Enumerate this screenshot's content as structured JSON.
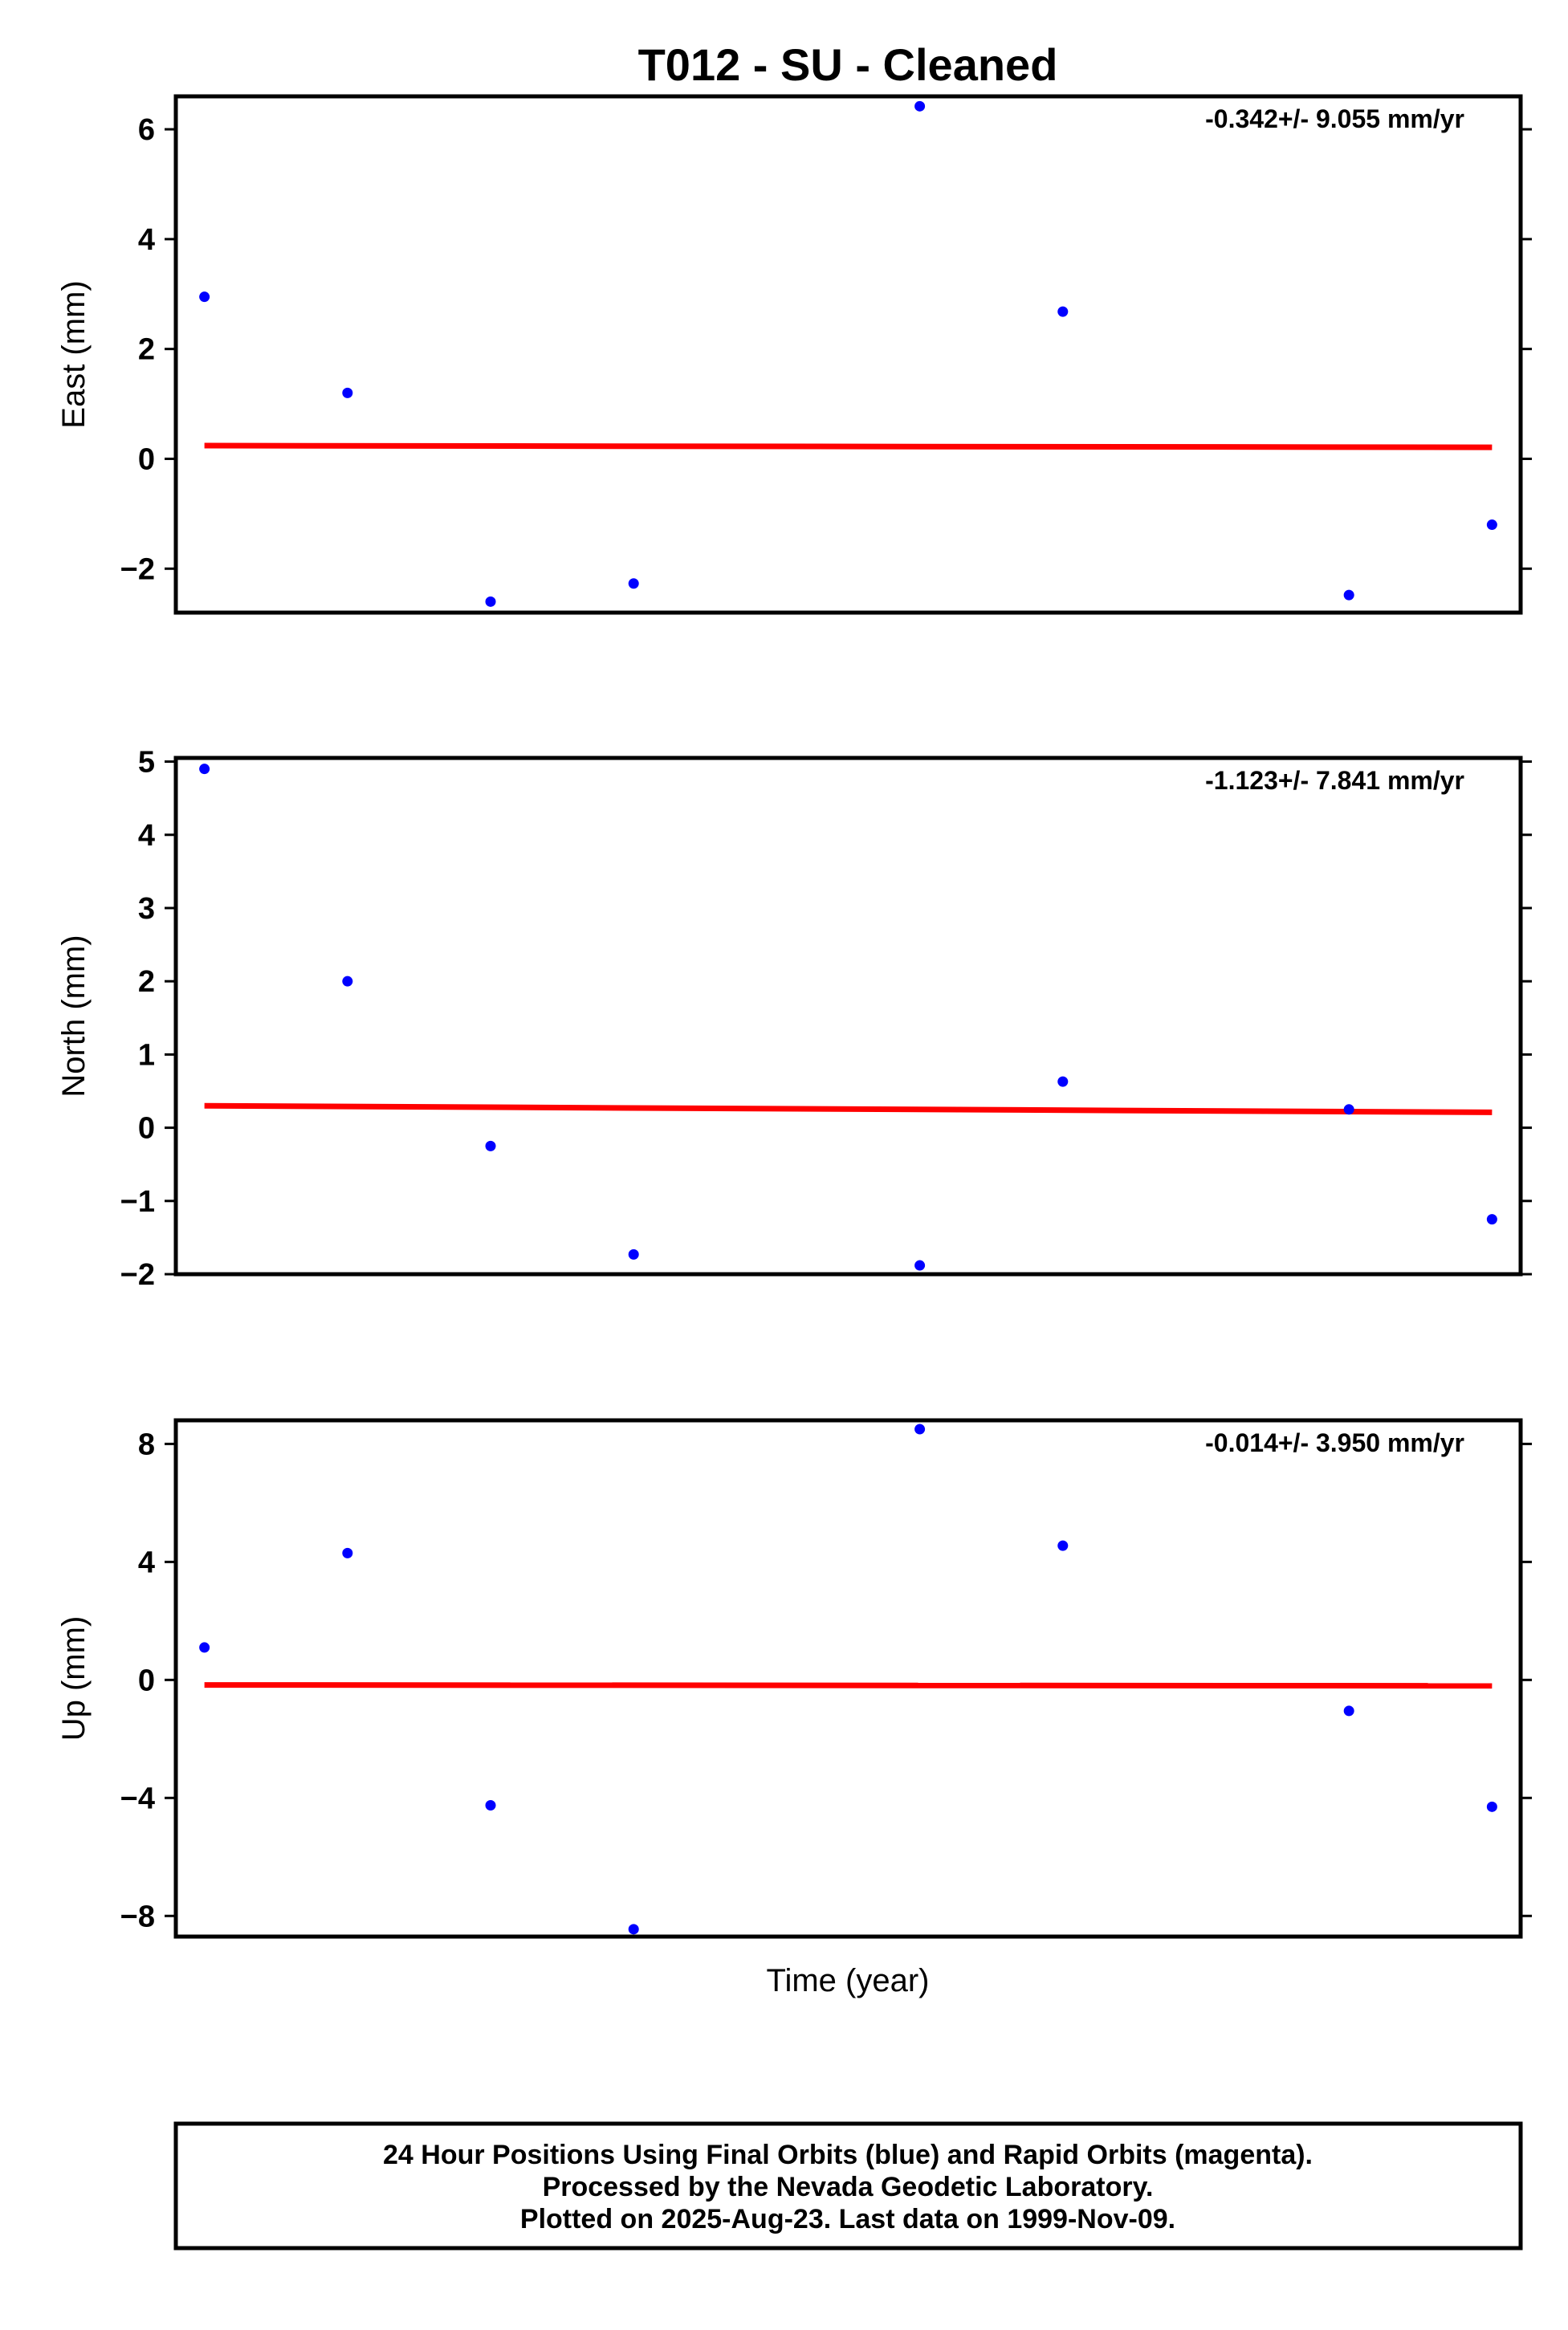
{
  "title": "T012  - SU - Cleaned",
  "xlabel": "Time (year)",
  "footer": {
    "line1": "24 Hour Positions Using Final Orbits (blue) and Rapid Orbits (magenta).",
    "line2": "Processed by the Nevada Geodetic Laboratory.",
    "line3": "Plotted on 2025-Aug-23. Last data on 1999-Nov-09."
  },
  "colors": {
    "points": "#0000ff",
    "fit": "#ff0000",
    "frame": "#000000"
  },
  "chart_data": [
    {
      "type": "scatter",
      "ylabel": "East (mm)",
      "rate_text": "-0.342+/- 9.055 mm/yr",
      "ylim": [
        -2.8,
        6.6
      ],
      "yticks": [
        6,
        4,
        2,
        0,
        -2
      ],
      "ytick_labels": [
        "6",
        "4",
        "2",
        "0",
        "−2"
      ],
      "x": [
        1,
        2,
        3,
        4,
        6,
        7,
        9,
        10
      ],
      "xlim": [
        0.8,
        10.2
      ],
      "values": [
        2.95,
        1.2,
        -2.6,
        -2.27,
        6.42,
        2.68,
        -2.48,
        -1.2
      ],
      "fit": {
        "start": 0.24,
        "end": 0.21
      },
      "grid": false
    },
    {
      "type": "scatter",
      "ylabel": "North (mm)",
      "rate_text": "-1.123+/- 7.841 mm/yr",
      "ylim": [
        -2.0,
        5.05
      ],
      "yticks": [
        5,
        4,
        3,
        2,
        1,
        0,
        -1,
        -2
      ],
      "ytick_labels": [
        "5",
        "4",
        "3",
        "2",
        "1",
        "0",
        "−1",
        "−2"
      ],
      "x": [
        1,
        2,
        3,
        4,
        6,
        7,
        9,
        10
      ],
      "xlim": [
        0.8,
        10.2
      ],
      "values": [
        4.9,
        2.0,
        -0.25,
        -1.73,
        -1.88,
        0.63,
        0.25,
        -1.25
      ],
      "fit": {
        "start": 0.3,
        "end": 0.21
      },
      "grid": false
    },
    {
      "type": "scatter",
      "ylabel": "Up (mm)",
      "rate_text": "-0.014+/- 3.950 mm/yr",
      "ylim": [
        -8.7,
        8.8
      ],
      "yticks": [
        8,
        4,
        0,
        -4,
        -8
      ],
      "ytick_labels": [
        "8",
        "4",
        "0",
        "−4",
        "−8"
      ],
      "x": [
        1,
        2,
        3,
        4,
        6,
        7,
        9,
        10
      ],
      "xlim": [
        0.8,
        10.2
      ],
      "values": [
        1.1,
        4.3,
        -4.25,
        -8.45,
        8.5,
        4.55,
        -1.05,
        -4.3
      ],
      "fit": {
        "start": -0.17,
        "end": -0.2
      },
      "grid": false
    }
  ]
}
